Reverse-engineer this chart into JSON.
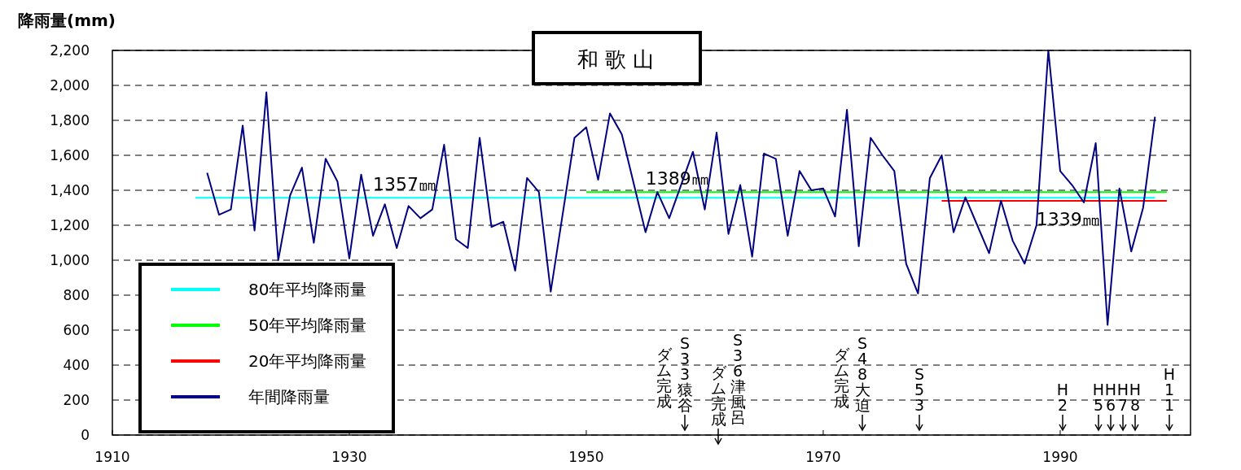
{
  "chart_data": {
    "type": "line",
    "title": "和歌山",
    "ylabel": "降雨量(mm)",
    "x": [
      1918,
      1919,
      1920,
      1921,
      1922,
      1923,
      1924,
      1925,
      1926,
      1927,
      1928,
      1929,
      1930,
      1931,
      1932,
      1933,
      1934,
      1935,
      1936,
      1937,
      1938,
      1939,
      1940,
      1941,
      1942,
      1943,
      1944,
      1945,
      1946,
      1947,
      1948,
      1949,
      1950,
      1951,
      1952,
      1953,
      1954,
      1955,
      1956,
      1957,
      1958,
      1959,
      1960,
      1961,
      1962,
      1963,
      1964,
      1965,
      1966,
      1967,
      1968,
      1969,
      1970,
      1971,
      1972,
      1973,
      1974,
      1975,
      1976,
      1977,
      1978,
      1979,
      1980,
      1981,
      1982,
      1983,
      1984,
      1985,
      1986,
      1987,
      1988,
      1989,
      1990,
      1991,
      1992,
      1993,
      1994,
      1995,
      1996,
      1997,
      1998
    ],
    "series": [
      {
        "name": "80年平均降雨量",
        "color": "#00ffff",
        "x": [
          1917,
          1998
        ],
        "values": [
          1357,
          1357
        ]
      },
      {
        "name": "50年平均降雨量",
        "color": "#00ff00",
        "x": [
          1950,
          1999
        ],
        "values": [
          1389,
          1389
        ]
      },
      {
        "name": "20年平均降雨量",
        "color": "#ff0000",
        "x": [
          1980,
          1999
        ],
        "values": [
          1339,
          1339
        ]
      },
      {
        "name": "年間降雨量",
        "color": "#000080",
        "values": [
          1500,
          1260,
          1290,
          1770,
          1170,
          1960,
          1000,
          1370,
          1530,
          1100,
          1580,
          1450,
          1010,
          1490,
          1140,
          1320,
          1070,
          1310,
          1240,
          1290,
          1660,
          1120,
          1070,
          1700,
          1190,
          1220,
          940,
          1470,
          1390,
          820,
          1260,
          1700,
          1760,
          1460,
          1840,
          1720,
          1440,
          1160,
          1390,
          1240,
          1430,
          1620,
          1290,
          1730,
          1150,
          1430,
          1020,
          1610,
          1580,
          1140,
          1510,
          1400,
          1410,
          1250,
          1860,
          1080,
          1700,
          1600,
          1510,
          980,
          810,
          1470,
          1600,
          1160,
          1360,
          1200,
          1040,
          1340,
          1110,
          980,
          1200,
          2200,
          1510,
          1430,
          1330,
          1670,
          630,
          1410,
          1050,
          1300,
          1820
        ]
      }
    ],
    "xlim": [
      1910,
      2001
    ],
    "xticks": [
      1910,
      1930,
      1950,
      1970,
      1990
    ],
    "ylim": [
      0,
      2200
    ],
    "yticks": [
      {
        "value": 0,
        "label": "0"
      },
      {
        "value": 200,
        "label": "200"
      },
      {
        "value": 400,
        "label": "400"
      },
      {
        "value": 600,
        "label": "600"
      },
      {
        "value": 800,
        "label": "800"
      },
      {
        "value": 1000,
        "label": "1,000"
      },
      {
        "value": 1200,
        "label": "1,200"
      },
      {
        "value": 1400,
        "label": "1,400"
      },
      {
        "value": 1600,
        "label": "1,600"
      },
      {
        "value": 1800,
        "label": "1,800"
      },
      {
        "value": 2000,
        "label": "2,000"
      },
      {
        "value": 2200,
        "label": "2,200"
      }
    ],
    "grid": "y",
    "legend": "bottom left",
    "annotations": [
      {
        "text": "1357㎜",
        "x": 1932,
        "y": 1357
      },
      {
        "text": "1389㎜",
        "x": 1955,
        "y": 1389
      },
      {
        "text": "1339㎜",
        "x": 1988,
        "y": 1339
      },
      "S33猿谷",
      "ダム完成",
      "S36津風呂",
      "ダム完成",
      "S48大迫",
      "ダム完成",
      "S53",
      "H2",
      "H5",
      "H6",
      "H7",
      "H8",
      "H11"
    ]
  }
}
